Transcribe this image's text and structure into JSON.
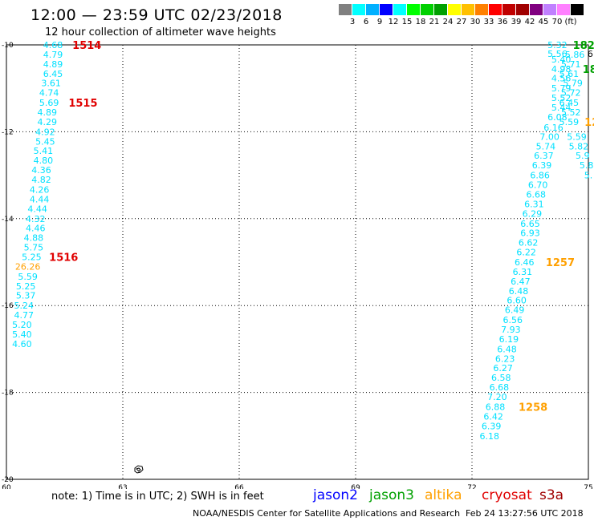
{
  "title": "12:00 — 23:59 UTC 02/23/2018",
  "subtitle": "12 hour collection of altimeter wave heights",
  "legend": {
    "colors": [
      "#808080",
      "#00ffff",
      "#00b0ff",
      "#0000ff",
      "#00ffff",
      "#00ff00",
      "#00d000",
      "#00a000",
      "#ffff00",
      "#ffc000",
      "#ff8000",
      "#ff0000",
      "#c00000",
      "#a00000",
      "#800080",
      "#c080ff",
      "#ff80ff",
      "#000000"
    ],
    "labels": [
      "3",
      "6",
      "9",
      "12",
      "15",
      "18",
      "21",
      "24",
      "27",
      "30",
      "33",
      "36",
      "39",
      "42",
      "45",
      "70",
      "(ft)"
    ]
  },
  "axes": {
    "x_ticks": [
      "60",
      "63",
      "66",
      "69",
      "72",
      "75"
    ],
    "y_ticks": [
      "-10",
      "-12",
      "-14",
      "-16",
      "-18",
      "-20"
    ],
    "xlim": [
      60,
      75
    ],
    "ylim": [
      -20,
      -10
    ]
  },
  "tracks": [
    {
      "color": "#00e0ff",
      "values": [
        {
          "lon": 61.2,
          "lat": -10.0,
          "v": "4.68"
        },
        {
          "lon": 61.2,
          "lat": -10.22,
          "v": "4.79"
        },
        {
          "lon": 61.2,
          "lat": -10.44,
          "v": "4.89"
        },
        {
          "lon": 61.2,
          "lat": -10.66,
          "v": "6.45"
        },
        {
          "lon": 61.15,
          "lat": -10.88,
          "v": "3.61"
        },
        {
          "lon": 61.1,
          "lat": -11.1,
          "v": "4.74"
        },
        {
          "lon": 61.1,
          "lat": -11.33,
          "v": "5.69"
        },
        {
          "lon": 61.05,
          "lat": -11.55,
          "v": "4.89"
        },
        {
          "lon": 61.05,
          "lat": -11.77,
          "v": "4.29"
        },
        {
          "lon": 61.0,
          "lat": -12.0,
          "v": "4.92"
        },
        {
          "lon": 61.0,
          "lat": -12.22,
          "v": "5.45"
        },
        {
          "lon": 60.95,
          "lat": -12.44,
          "v": "5.41"
        },
        {
          "lon": 60.95,
          "lat": -12.66,
          "v": "4.80"
        },
        {
          "lon": 60.9,
          "lat": -12.88,
          "v": "4.36"
        },
        {
          "lon": 60.9,
          "lat": -13.1,
          "v": "4.82"
        },
        {
          "lon": 60.85,
          "lat": -13.33,
          "v": "4.26"
        },
        {
          "lon": 60.85,
          "lat": -13.55,
          "v": "4.44"
        },
        {
          "lon": 60.8,
          "lat": -13.77,
          "v": "4.44"
        },
        {
          "lon": 60.75,
          "lat": -14.0,
          "v": "4.32"
        },
        {
          "lon": 60.75,
          "lat": -14.22,
          "v": "4.46"
        },
        {
          "lon": 60.7,
          "lat": -14.44,
          "v": "4.88"
        },
        {
          "lon": 60.7,
          "lat": -14.66,
          "v": "5.75"
        },
        {
          "lon": 60.65,
          "lat": -14.88,
          "v": "5.25"
        },
        {
          "lon": 60.55,
          "lat": -15.33,
          "v": "5.59"
        },
        {
          "lon": 60.5,
          "lat": -15.55,
          "v": "5.25"
        },
        {
          "lon": 60.5,
          "lat": -15.77,
          "v": "5.37"
        },
        {
          "lon": 60.45,
          "lat": -16.0,
          "v": "5.24"
        },
        {
          "lon": 60.45,
          "lat": -16.22,
          "v": "4.77"
        },
        {
          "lon": 60.4,
          "lat": -16.44,
          "v": "5.20"
        },
        {
          "lon": 60.4,
          "lat": -16.66,
          "v": "5.40"
        },
        {
          "lon": 60.4,
          "lat": -16.88,
          "v": "4.60"
        }
      ]
    },
    {
      "color": "#ffa000",
      "values": [
        {
          "lon": 60.55,
          "lat": -15.1,
          "v": "26.26"
        }
      ]
    },
    {
      "color": "#00e0ff",
      "values": [
        {
          "lon": 74.2,
          "lat": -10.0,
          "v": "5.32"
        },
        {
          "lon": 74.2,
          "lat": -10.2,
          "v": "5.56"
        },
        {
          "lon": 74.3,
          "lat": -10.33,
          "v": "5.40"
        },
        {
          "lon": 74.3,
          "lat": -10.55,
          "v": "4.98"
        },
        {
          "lon": 74.3,
          "lat": -10.77,
          "v": "4.56"
        },
        {
          "lon": 74.3,
          "lat": -11.0,
          "v": "5.79"
        },
        {
          "lon": 74.3,
          "lat": -11.22,
          "v": "5.52"
        },
        {
          "lon": 74.3,
          "lat": -11.44,
          "v": "5.44"
        },
        {
          "lon": 74.2,
          "lat": -11.66,
          "v": "6.08"
        },
        {
          "lon": 74.1,
          "lat": -11.9,
          "v": "6.16"
        },
        {
          "lon": 74.0,
          "lat": -12.11,
          "v": "7.00"
        },
        {
          "lon": 73.9,
          "lat": -12.33,
          "v": "5.74"
        },
        {
          "lon": 73.85,
          "lat": -12.55,
          "v": "6.37"
        },
        {
          "lon": 73.8,
          "lat": -12.77,
          "v": "6.39"
        },
        {
          "lon": 73.75,
          "lat": -13.0,
          "v": "6.86"
        },
        {
          "lon": 73.7,
          "lat": -13.22,
          "v": "6.70"
        },
        {
          "lon": 73.65,
          "lat": -13.44,
          "v": "6.68"
        },
        {
          "lon": 73.6,
          "lat": -13.66,
          "v": "6.31"
        },
        {
          "lon": 73.55,
          "lat": -13.88,
          "v": "6.29"
        },
        {
          "lon": 73.5,
          "lat": -14.11,
          "v": "6.65"
        },
        {
          "lon": 73.5,
          "lat": -14.33,
          "v": "6.93"
        },
        {
          "lon": 73.45,
          "lat": -14.55,
          "v": "6.62"
        },
        {
          "lon": 73.4,
          "lat": -14.77,
          "v": "6.22"
        },
        {
          "lon": 73.35,
          "lat": -15.0,
          "v": "6.46"
        },
        {
          "lon": 73.3,
          "lat": -15.22,
          "v": "6.31"
        },
        {
          "lon": 73.25,
          "lat": -15.44,
          "v": "6.47"
        },
        {
          "lon": 73.2,
          "lat": -15.66,
          "v": "6.48"
        },
        {
          "lon": 73.15,
          "lat": -15.88,
          "v": "6.60"
        },
        {
          "lon": 73.1,
          "lat": -16.1,
          "v": "6.49"
        },
        {
          "lon": 73.05,
          "lat": -16.33,
          "v": "6.56"
        },
        {
          "lon": 73.0,
          "lat": -16.55,
          "v": "7.93"
        },
        {
          "lon": 72.95,
          "lat": -16.77,
          "v": "6.19"
        },
        {
          "lon": 72.9,
          "lat": -17.0,
          "v": "6.48"
        },
        {
          "lon": 72.85,
          "lat": -17.22,
          "v": "6.23"
        },
        {
          "lon": 72.8,
          "lat": -17.44,
          "v": "6.27"
        },
        {
          "lon": 72.75,
          "lat": -17.66,
          "v": "6.58"
        },
        {
          "lon": 72.7,
          "lat": -17.88,
          "v": "6.68"
        },
        {
          "lon": 72.65,
          "lat": -18.1,
          "v": "7.20"
        },
        {
          "lon": 72.6,
          "lat": -18.33,
          "v": "6.88"
        },
        {
          "lon": 72.55,
          "lat": -18.55,
          "v": "6.42"
        },
        {
          "lon": 72.5,
          "lat": -18.77,
          "v": "6.39"
        },
        {
          "lon": 72.45,
          "lat": -19.0,
          "v": "6.18"
        }
      ]
    },
    {
      "color": "#00e0ff",
      "values": [
        {
          "lon": 74.65,
          "lat": -10.22,
          "v": "5.86"
        },
        {
          "lon": 74.55,
          "lat": -10.44,
          "v": "5.71"
        },
        {
          "lon": 74.5,
          "lat": -10.66,
          "v": "5.61"
        },
        {
          "lon": 74.6,
          "lat": -10.88,
          "v": "5.79"
        },
        {
          "lon": 74.55,
          "lat": -11.1,
          "v": "5.72"
        },
        {
          "lon": 74.5,
          "lat": -11.33,
          "v": "6.45"
        },
        {
          "lon": 74.55,
          "lat": -11.55,
          "v": "5.52"
        },
        {
          "lon": 74.5,
          "lat": -11.77,
          "v": "5.59"
        },
        {
          "lon": 74.7,
          "lat": -12.11,
          "v": "5.59"
        },
        {
          "lon": 74.75,
          "lat": -12.33,
          "v": "5.82"
        },
        {
          "lon": 74.85,
          "lat": -12.55,
          "v": "5.9"
        },
        {
          "lon": 74.95,
          "lat": -12.77,
          "v": "5.8"
        },
        {
          "lon": 75.0,
          "lat": -13.0,
          "v": "5."
        }
      ]
    },
    {
      "color": "#000000",
      "values": [
        {
          "lon": 75.05,
          "lat": -10.2,
          "v": "6"
        }
      ]
    }
  ],
  "pass_labels": [
    {
      "text": "1514",
      "color": "#e00000",
      "lon": 61.7,
      "lat": -10.0
    },
    {
      "text": "1515",
      "color": "#e00000",
      "lon": 61.6,
      "lat": -11.33
    },
    {
      "text": "1516",
      "color": "#e00000",
      "lon": 61.1,
      "lat": -14.88
    },
    {
      "text": "1257",
      "color": "#ffa000",
      "lon": 73.9,
      "lat": -15.0
    },
    {
      "text": "1258",
      "color": "#ffa000",
      "lon": 73.2,
      "lat": -18.33
    },
    {
      "text": "182",
      "color": "#00a000",
      "lon": 74.6,
      "lat": -10.0
    },
    {
      "text": "18",
      "color": "#00a000",
      "lon": 74.85,
      "lat": -10.55
    },
    {
      "text": "12",
      "color": "#ffa000",
      "lon": 74.9,
      "lat": -11.77
    }
  ],
  "note": "note:  1) Time is in UTC;  2) SWH is in feet",
  "missions": [
    {
      "name": "jason2",
      "color": "#0000ff"
    },
    {
      "name": "jason3",
      "color": "#00a000"
    },
    {
      "name": "altika",
      "color": "#ffa000"
    },
    {
      "name": "cryosat",
      "color": "#e00000"
    },
    {
      "name": "s3a",
      "color": "#a00000"
    }
  ],
  "credit": "NOAA/NESDIS Center for Satellite Applications and Research",
  "generated": "Feb 24 13:27:56 UTC 2018"
}
